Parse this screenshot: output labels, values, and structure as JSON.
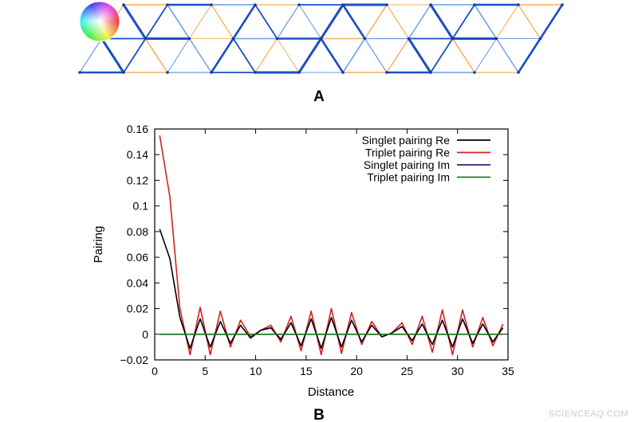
{
  "panel_a": {
    "label": "A",
    "lattice": {
      "cols": 10,
      "rows": 2,
      "edge_colors": [
        "#1a4fc4",
        "#f2b15a",
        "#6c9be0"
      ]
    }
  },
  "panel_b": {
    "label": "B"
  },
  "watermark": "SCIENCEAQ.COM",
  "chart_data": {
    "type": "line",
    "title": "",
    "xlabel": "Distance",
    "ylabel": "Pairing",
    "xlim": [
      0,
      35
    ],
    "ylim": [
      -0.02,
      0.16
    ],
    "xticks": [
      "0",
      "5",
      "10",
      "15",
      "20",
      "25",
      "30",
      "35"
    ],
    "yticks": [
      "−0.02",
      "0",
      "0.02",
      "0.04",
      "0.06",
      "0.08",
      "0.1",
      "0.12",
      "0.14",
      "0.16"
    ],
    "grid": false,
    "legend_position": "top-right",
    "x": [
      0.5,
      1.5,
      2.5,
      3.5,
      4.5,
      5.5,
      6.5,
      7.5,
      8.5,
      9.5,
      10.5,
      11.5,
      12.5,
      13.5,
      14.5,
      15.5,
      16.5,
      17.5,
      18.5,
      19.5,
      20.5,
      21.5,
      22.5,
      23.5,
      24.5,
      25.5,
      26.5,
      27.5,
      28.5,
      29.5,
      30.5,
      31.5,
      32.5,
      33.5,
      34.5
    ],
    "series": [
      {
        "name": "Singlet pairing Re",
        "color": "#000000",
        "values": [
          0.082,
          0.059,
          0.013,
          -0.011,
          0.012,
          -0.01,
          0.01,
          -0.007,
          0.007,
          -0.003,
          0.003,
          0.005,
          -0.004,
          0.009,
          -0.009,
          0.012,
          -0.011,
          0.013,
          -0.01,
          0.011,
          -0.006,
          0.007,
          -0.002,
          0.001,
          0.006,
          -0.005,
          0.008,
          -0.008,
          0.011,
          -0.01,
          0.012,
          -0.007,
          0.008,
          -0.006,
          0.005
        ]
      },
      {
        "name": "Triplet pairing Re",
        "color": "#d42020",
        "values": [
          0.155,
          0.107,
          0.02,
          -0.016,
          0.021,
          -0.016,
          0.018,
          -0.01,
          0.011,
          -0.002,
          0.003,
          0.007,
          -0.006,
          0.014,
          -0.013,
          0.018,
          -0.016,
          0.02,
          -0.015,
          0.017,
          -0.008,
          0.01,
          -0.002,
          0.001,
          0.009,
          -0.008,
          0.014,
          -0.014,
          0.019,
          -0.016,
          0.019,
          -0.01,
          0.013,
          -0.009,
          0.008
        ]
      },
      {
        "name": "Singlet pairing Im",
        "color": "#1f2a80",
        "values": [
          0,
          0,
          0,
          0,
          0,
          0,
          0,
          0,
          0,
          0,
          0,
          0,
          0,
          0,
          0,
          0,
          0,
          0,
          0,
          0,
          0,
          0,
          0,
          0,
          0,
          0,
          0,
          0,
          0,
          0,
          0,
          0,
          0,
          0,
          0
        ]
      },
      {
        "name": "Triplet pairing Im",
        "color": "#1e7a1e",
        "values": [
          0,
          0,
          0,
          0,
          0,
          0,
          0,
          0,
          0,
          0,
          0,
          0,
          0,
          0,
          0,
          0,
          0,
          0,
          0,
          0,
          0,
          0,
          0,
          0,
          0,
          0,
          0,
          0,
          0,
          0,
          0,
          0,
          0,
          0,
          0
        ]
      }
    ]
  }
}
